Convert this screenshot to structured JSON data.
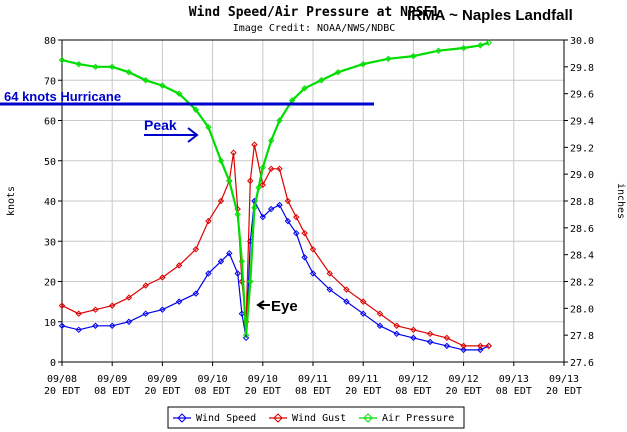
{
  "chart_data": {
    "type": "line",
    "title": "Wind Speed/Air Pressure at NPSF1",
    "subtitle": "Image Credit: NOAA/NWS/NDBC",
    "headline": "IRMA ~ Naples Landfall",
    "ylabel_left": "knots",
    "ylabel_right": "inches",
    "ylim_left": [
      0,
      80
    ],
    "ylim_right": [
      27.6,
      30.0
    ],
    "yticks_left": [
      "0",
      "10",
      "20",
      "30",
      "40",
      "50",
      "60",
      "70",
      "80"
    ],
    "yticks_right": [
      "27.6",
      "27.8",
      "28.0",
      "28.2",
      "28.4",
      "28.6",
      "28.8",
      "29.0",
      "29.2",
      "29.4",
      "29.6",
      "29.8",
      "30.0"
    ],
    "xlim": [
      0,
      120
    ],
    "xticks": [
      {
        "x": 0,
        "l1": "09/08",
        "l2": "20 EDT"
      },
      {
        "x": 12,
        "l1": "09/09",
        "l2": "08 EDT"
      },
      {
        "x": 24,
        "l1": "09/09",
        "l2": "20 EDT"
      },
      {
        "x": 36,
        "l1": "09/10",
        "l2": "08 EDT"
      },
      {
        "x": 48,
        "l1": "09/10",
        "l2": "20 EDT"
      },
      {
        "x": 60,
        "l1": "09/11",
        "l2": "08 EDT"
      },
      {
        "x": 72,
        "l1": "09/11",
        "l2": "20 EDT"
      },
      {
        "x": 84,
        "l1": "09/12",
        "l2": "08 EDT"
      },
      {
        "x": 96,
        "l1": "09/12",
        "l2": "20 EDT"
      },
      {
        "x": 108,
        "l1": "09/13",
        "l2": "08 EDT"
      },
      {
        "x": 120,
        "l1": "09/13",
        "l2": "20 EDT"
      }
    ],
    "grid": true,
    "legend_position": "bottom",
    "series": [
      {
        "name": "Wind Speed",
        "axis": "left",
        "color": "#0000ee",
        "points": [
          [
            0,
            9
          ],
          [
            4,
            8
          ],
          [
            8,
            9
          ],
          [
            12,
            9
          ],
          [
            16,
            10
          ],
          [
            20,
            12
          ],
          [
            24,
            13
          ],
          [
            28,
            15
          ],
          [
            32,
            17
          ],
          [
            35,
            22
          ],
          [
            38,
            25
          ],
          [
            40,
            27
          ],
          [
            42,
            22
          ],
          [
            43,
            12
          ],
          [
            44,
            6
          ],
          [
            45,
            30
          ],
          [
            46,
            40
          ],
          [
            48,
            36
          ],
          [
            50,
            38
          ],
          [
            52,
            39
          ],
          [
            54,
            35
          ],
          [
            56,
            32
          ],
          [
            58,
            26
          ],
          [
            60,
            22
          ],
          [
            64,
            18
          ],
          [
            68,
            15
          ],
          [
            72,
            12
          ],
          [
            76,
            9
          ],
          [
            80,
            7
          ],
          [
            84,
            6
          ],
          [
            88,
            5
          ],
          [
            92,
            4
          ],
          [
            96,
            3
          ],
          [
            100,
            3
          ],
          [
            102,
            4
          ]
        ]
      },
      {
        "name": "Wind Gust",
        "axis": "left",
        "color": "#dd0000",
        "points": [
          [
            0,
            14
          ],
          [
            4,
            12
          ],
          [
            8,
            13
          ],
          [
            12,
            14
          ],
          [
            16,
            16
          ],
          [
            20,
            19
          ],
          [
            24,
            21
          ],
          [
            28,
            24
          ],
          [
            32,
            28
          ],
          [
            35,
            35
          ],
          [
            38,
            40
          ],
          [
            40,
            45
          ],
          [
            41,
            52
          ],
          [
            42,
            38
          ],
          [
            43,
            20
          ],
          [
            44,
            10
          ],
          [
            45,
            45
          ],
          [
            46,
            54
          ],
          [
            48,
            44
          ],
          [
            50,
            48
          ],
          [
            52,
            48
          ],
          [
            54,
            40
          ],
          [
            56,
            36
          ],
          [
            58,
            32
          ],
          [
            60,
            28
          ],
          [
            64,
            22
          ],
          [
            68,
            18
          ],
          [
            72,
            15
          ],
          [
            76,
            12
          ],
          [
            80,
            9
          ],
          [
            84,
            8
          ],
          [
            88,
            7
          ],
          [
            92,
            6
          ],
          [
            96,
            4
          ],
          [
            100,
            4
          ],
          [
            102,
            4
          ]
        ]
      },
      {
        "name": "Air Pressure",
        "axis": "right",
        "color": "#00dd00",
        "points": [
          [
            0,
            29.85
          ],
          [
            4,
            29.82
          ],
          [
            8,
            29.8
          ],
          [
            12,
            29.8
          ],
          [
            16,
            29.76
          ],
          [
            20,
            29.7
          ],
          [
            24,
            29.66
          ],
          [
            28,
            29.6
          ],
          [
            32,
            29.48
          ],
          [
            35,
            29.35
          ],
          [
            38,
            29.1
          ],
          [
            40,
            28.95
          ],
          [
            42,
            28.7
          ],
          [
            43,
            28.35
          ],
          [
            44,
            27.8
          ],
          [
            45,
            28.2
          ],
          [
            46,
            28.75
          ],
          [
            47,
            28.9
          ],
          [
            48,
            29.05
          ],
          [
            50,
            29.25
          ],
          [
            52,
            29.4
          ],
          [
            55,
            29.55
          ],
          [
            58,
            29.64
          ],
          [
            62,
            29.7
          ],
          [
            66,
            29.76
          ],
          [
            72,
            29.82
          ],
          [
            78,
            29.86
          ],
          [
            84,
            29.88
          ],
          [
            90,
            29.92
          ],
          [
            96,
            29.94
          ],
          [
            100,
            29.96
          ],
          [
            102,
            29.98
          ]
        ]
      }
    ],
    "annotations": [
      {
        "text": "64 knots Hurricane",
        "color": "#0000cc",
        "value": 64
      },
      {
        "text": "Peak",
        "color": "#0000cc"
      },
      {
        "text": "Eye",
        "color": "#000000"
      }
    ]
  }
}
